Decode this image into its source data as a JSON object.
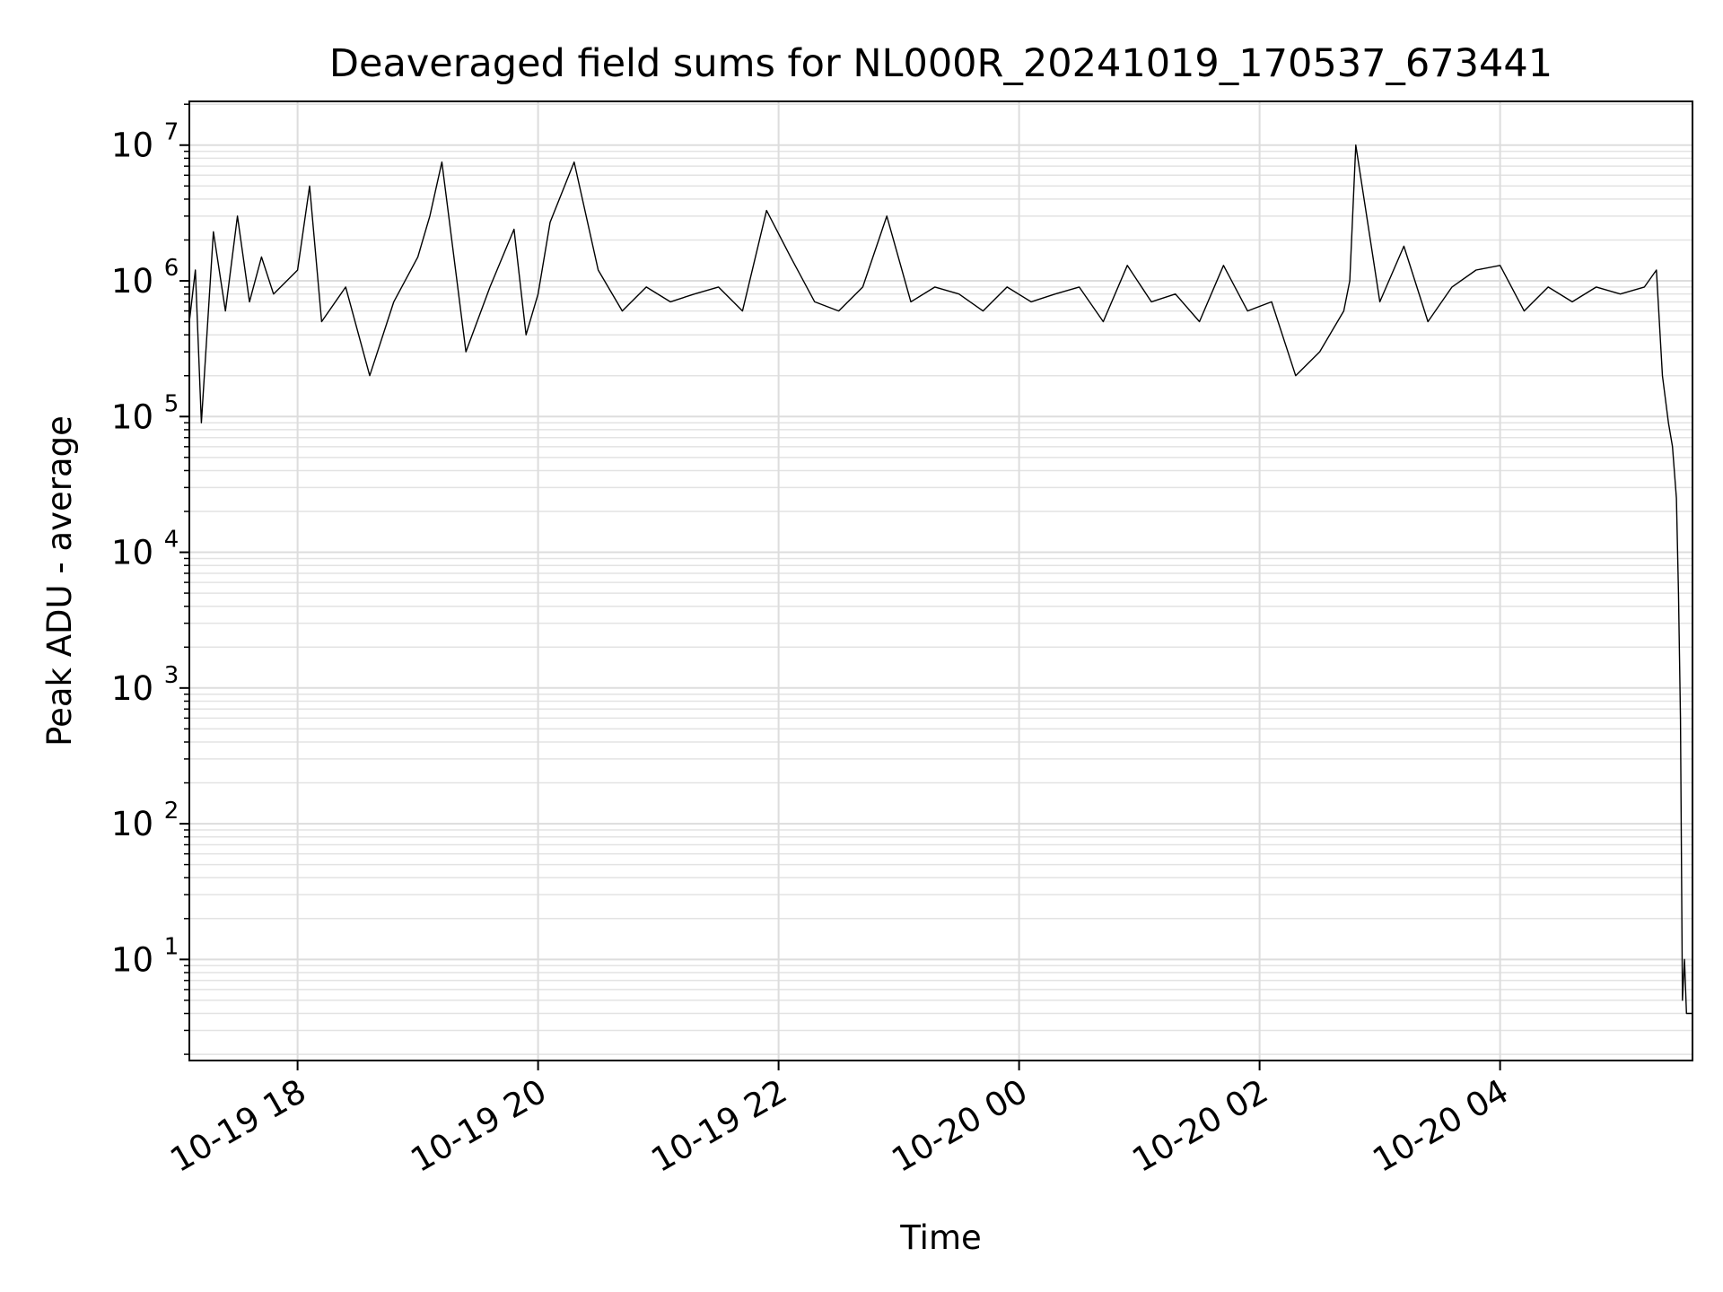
{
  "chart_data": {
    "type": "line",
    "title": "Deaveraged field sums for NL000R_20241019_170537_673441",
    "xlabel": "Time",
    "ylabel": "Peak ADU - average",
    "y_scale": "log",
    "ylim": [
      1.8,
      21000000
    ],
    "xlim": [
      "2024-10-19 17:06",
      "2024-10-20 05:36"
    ],
    "grid": true,
    "x_ticks": [
      {
        "t": "2024-10-19 18:00",
        "label": "10-19 18"
      },
      {
        "t": "2024-10-19 20:00",
        "label": "10-19 20"
      },
      {
        "t": "2024-10-19 22:00",
        "label": "10-19 22"
      },
      {
        "t": "2024-10-20 00:00",
        "label": "10-20 00"
      },
      {
        "t": "2024-10-20 02:00",
        "label": "10-20 02"
      },
      {
        "t": "2024-10-20 04:00",
        "label": "10-20 04"
      }
    ],
    "y_ticks": [
      {
        "value": 10,
        "base": "10",
        "exp": "1"
      },
      {
        "value": 100,
        "base": "10",
        "exp": "2"
      },
      {
        "value": 1000,
        "base": "10",
        "exp": "3"
      },
      {
        "value": 10000,
        "base": "10",
        "exp": "4"
      },
      {
        "value": 100000,
        "base": "10",
        "exp": "5"
      },
      {
        "value": 1000000,
        "base": "10",
        "exp": "6"
      },
      {
        "value": 10000000,
        "base": "10",
        "exp": "7"
      }
    ],
    "series": [
      {
        "color": "#000000",
        "x": [
          "2024-10-19 17:06",
          "2024-10-19 17:09",
          "2024-10-19 17:12",
          "2024-10-19 17:18",
          "2024-10-19 17:24",
          "2024-10-19 17:30",
          "2024-10-19 17:36",
          "2024-10-19 17:42",
          "2024-10-19 17:48",
          "2024-10-19 18:00",
          "2024-10-19 18:06",
          "2024-10-19 18:12",
          "2024-10-19 18:24",
          "2024-10-19 18:36",
          "2024-10-19 18:48",
          "2024-10-19 19:00",
          "2024-10-19 19:06",
          "2024-10-19 19:12",
          "2024-10-19 19:24",
          "2024-10-19 19:36",
          "2024-10-19 19:48",
          "2024-10-19 19:54",
          "2024-10-19 20:00",
          "2024-10-19 20:06",
          "2024-10-19 20:18",
          "2024-10-19 20:30",
          "2024-10-19 20:42",
          "2024-10-19 20:54",
          "2024-10-19 21:06",
          "2024-10-19 21:18",
          "2024-10-19 21:30",
          "2024-10-19 21:42",
          "2024-10-19 21:54",
          "2024-10-19 22:06",
          "2024-10-19 22:18",
          "2024-10-19 22:30",
          "2024-10-19 22:42",
          "2024-10-19 22:54",
          "2024-10-19 23:06",
          "2024-10-19 23:18",
          "2024-10-19 23:30",
          "2024-10-19 23:42",
          "2024-10-19 23:54",
          "2024-10-20 00:06",
          "2024-10-20 00:18",
          "2024-10-20 00:30",
          "2024-10-20 00:42",
          "2024-10-20 00:54",
          "2024-10-20 01:06",
          "2024-10-20 01:18",
          "2024-10-20 01:30",
          "2024-10-20 01:42",
          "2024-10-20 01:54",
          "2024-10-20 02:06",
          "2024-10-20 02:18",
          "2024-10-20 02:30",
          "2024-10-20 02:42",
          "2024-10-20 02:45",
          "2024-10-20 02:48",
          "2024-10-20 03:00",
          "2024-10-20 03:12",
          "2024-10-20 03:24",
          "2024-10-20 03:36",
          "2024-10-20 03:48",
          "2024-10-20 04:00",
          "2024-10-20 04:12",
          "2024-10-20 04:24",
          "2024-10-20 04:36",
          "2024-10-20 04:48",
          "2024-10-20 05:00",
          "2024-10-20 05:12",
          "2024-10-20 05:18",
          "2024-10-20 05:21",
          "2024-10-20 05:24",
          "2024-10-20 05:26",
          "2024-10-20 05:28",
          "2024-10-20 05:29",
          "2024-10-20 05:30",
          "2024-10-20 05:31",
          "2024-10-20 05:32",
          "2024-10-20 05:33",
          "2024-10-20 05:34",
          "2024-10-20 05:36"
        ],
        "y": [
          500000,
          1200000,
          90000,
          2300000,
          600000,
          3000000,
          700000,
          1500000,
          800000,
          1200000,
          5000000,
          500000,
          900000,
          200000,
          700000,
          1500000,
          3000000,
          7500000,
          300000,
          900000,
          2400000,
          400000,
          800000,
          2700000,
          7500000,
          1200000,
          600000,
          900000,
          700000,
          800000,
          900000,
          600000,
          3300000,
          1500000,
          700000,
          600000,
          900000,
          3000000,
          700000,
          900000,
          800000,
          600000,
          900000,
          700000,
          800000,
          900000,
          500000,
          1300000,
          700000,
          800000,
          500000,
          1300000,
          600000,
          700000,
          200000,
          300000,
          600000,
          1000000,
          10000000,
          700000,
          1800000,
          500000,
          900000,
          1200000,
          1300000,
          600000,
          900000,
          700000,
          900000,
          800000,
          900000,
          1200000,
          200000,
          90000,
          60000,
          25000,
          5000,
          600,
          5,
          10,
          4,
          4,
          4
        ]
      }
    ]
  }
}
